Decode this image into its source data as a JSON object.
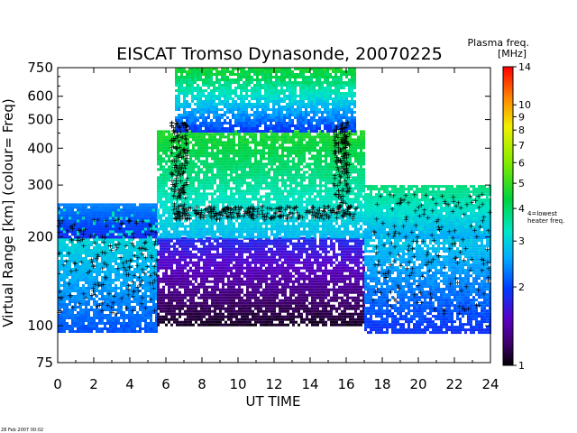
{
  "chart_data": {
    "type": "heatmap",
    "title": "EISCAT Tromso Dynasonde,  20070225",
    "xlabel": "UT TIME",
    "ylabel": "Virtual Range [km]   (colour= Freq)",
    "xlim": [
      0,
      24
    ],
    "ylim": [
      75,
      750
    ],
    "yscale": "log",
    "x_ticks": [
      0,
      2,
      4,
      6,
      8,
      10,
      12,
      14,
      16,
      18,
      20,
      22,
      24
    ],
    "y_ticks": [
      75,
      100,
      200,
      300,
      400,
      500,
      600,
      750
    ],
    "colorbar": {
      "title": "Plasma freq.",
      "units": "[MHz]",
      "scale": "log",
      "range": [
        1,
        14
      ],
      "ticks": [
        1,
        2,
        3,
        4,
        5,
        6,
        7,
        8,
        9,
        10,
        14
      ],
      "annotation": "4=lowest heater freq."
    },
    "markers": "+",
    "regions": [
      {
        "x": [
          0,
          5.5
        ],
        "y": [
          95,
          250
        ],
        "freq": [
          2.0,
          3.6
        ]
      },
      {
        "x": [
          0,
          5.5
        ],
        "y": [
          200,
          260
        ],
        "freq": [
          1.8,
          2.4
        ]
      },
      {
        "x": [
          5.5,
          17
        ],
        "y": [
          100,
          200
        ],
        "freq": [
          1.0,
          1.9
        ]
      },
      {
        "x": [
          5.5,
          17
        ],
        "y": [
          200,
          460
        ],
        "freq": [
          2.6,
          5.0
        ]
      },
      {
        "x": [
          6.5,
          16.5
        ],
        "y": [
          460,
          750
        ],
        "freq": [
          1.8,
          5.0
        ]
      },
      {
        "x": [
          17,
          24
        ],
        "y": [
          95,
          270
        ],
        "freq": [
          1.8,
          3.6
        ]
      },
      {
        "x": [
          17,
          24
        ],
        "y": [
          200,
          300
        ],
        "freq": [
          2.5,
          4.0
        ]
      }
    ]
  },
  "timestamp": "28 Feb 2007 00:02"
}
